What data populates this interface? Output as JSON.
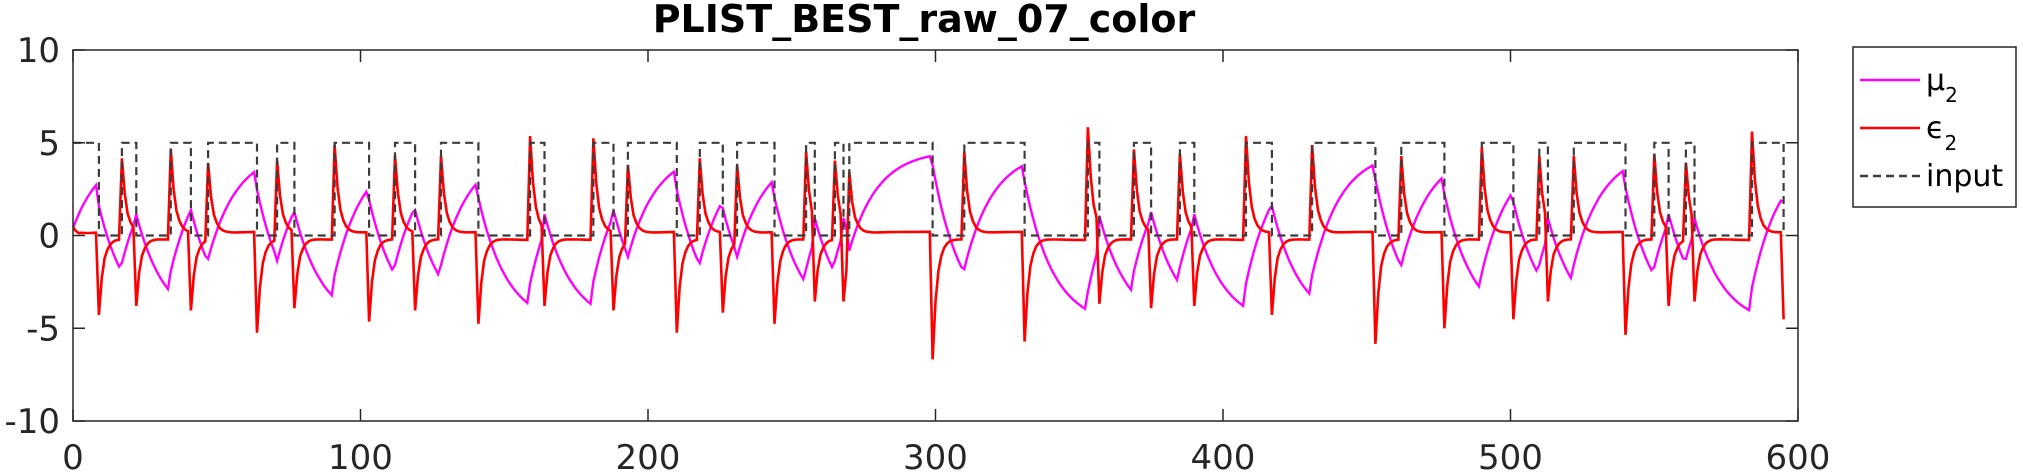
{
  "chart_data": {
    "type": "line",
    "title": "PLIST_BEST_raw_07_color",
    "xlim": [
      0,
      600
    ],
    "ylim": [
      -10,
      10
    ],
    "xticks": [
      "0",
      "100",
      "200",
      "300",
      "400",
      "500",
      "600"
    ],
    "yticks": [
      "10",
      "5",
      "0",
      "-5",
      "-10"
    ],
    "grid": false,
    "legend_position": "outside-top-right",
    "input_steps": [
      [
        0,
        9
      ],
      [
        17,
        22
      ],
      [
        34,
        41
      ],
      [
        47,
        64
      ],
      [
        71,
        77
      ],
      [
        91,
        103
      ],
      [
        112,
        119
      ],
      [
        128,
        141
      ],
      [
        159,
        164
      ],
      [
        181,
        188
      ],
      [
        193,
        210
      ],
      [
        218,
        226
      ],
      [
        231,
        244
      ],
      [
        255,
        258
      ],
      [
        265,
        268
      ],
      [
        270,
        299
      ],
      [
        310,
        331
      ],
      [
        353,
        357
      ],
      [
        369,
        375
      ],
      [
        385,
        390
      ],
      [
        408,
        417
      ],
      [
        431,
        453
      ],
      [
        462,
        477
      ],
      [
        490,
        501
      ],
      [
        510,
        513
      ],
      [
        522,
        540
      ],
      [
        550,
        555
      ],
      [
        561,
        564
      ],
      [
        584,
        595
      ]
    ],
    "input_high": 5,
    "series": [
      {
        "name_main": "μ",
        "name_sub": "2",
        "color": "#ff00ff",
        "style": "solid",
        "role": "mu"
      },
      {
        "name_main": "ϵ",
        "name_sub": "2",
        "color": "#ff0000",
        "style": "solid",
        "role": "eps"
      },
      {
        "name_main": "input",
        "name_sub": "",
        "color": "#3c3c3c",
        "style": "dashed",
        "role": "input"
      }
    ]
  }
}
